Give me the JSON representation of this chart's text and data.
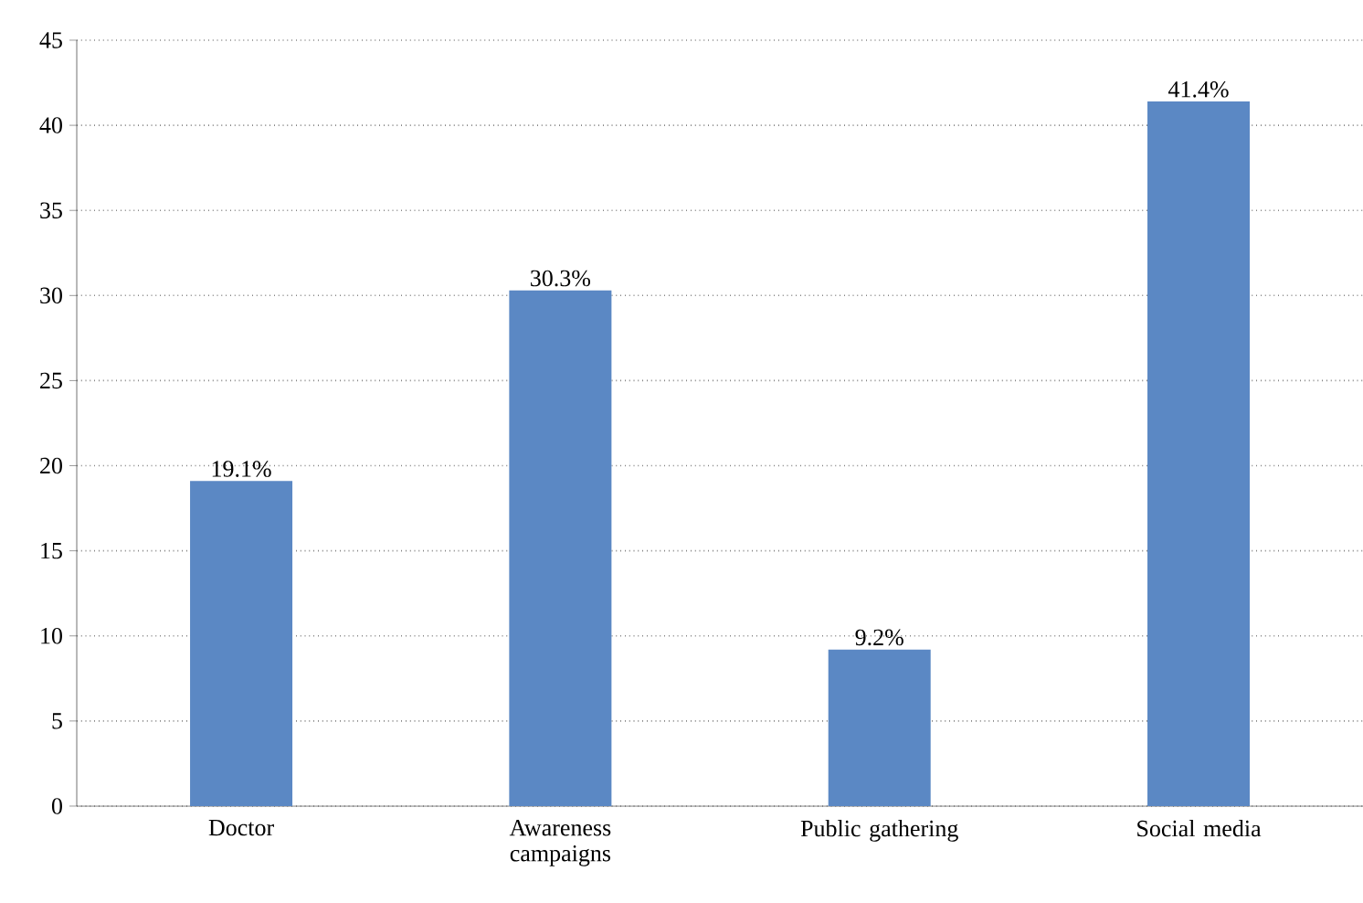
{
  "chart_data": {
    "type": "bar",
    "categories": [
      "Doctor",
      "Awareness campaigns",
      "Public gathering",
      "Social media"
    ],
    "values": [
      19.1,
      30.3,
      9.2,
      41.4
    ],
    "color": "#5b88c4",
    "value_labels": [
      "19.1%",
      "30.3%",
      "9.2%",
      "41.4%"
    ],
    "ylim": [
      0,
      45
    ],
    "yticks": [
      0,
      5,
      10,
      15,
      20,
      25,
      30,
      35,
      40,
      45
    ],
    "grid": "y"
  }
}
